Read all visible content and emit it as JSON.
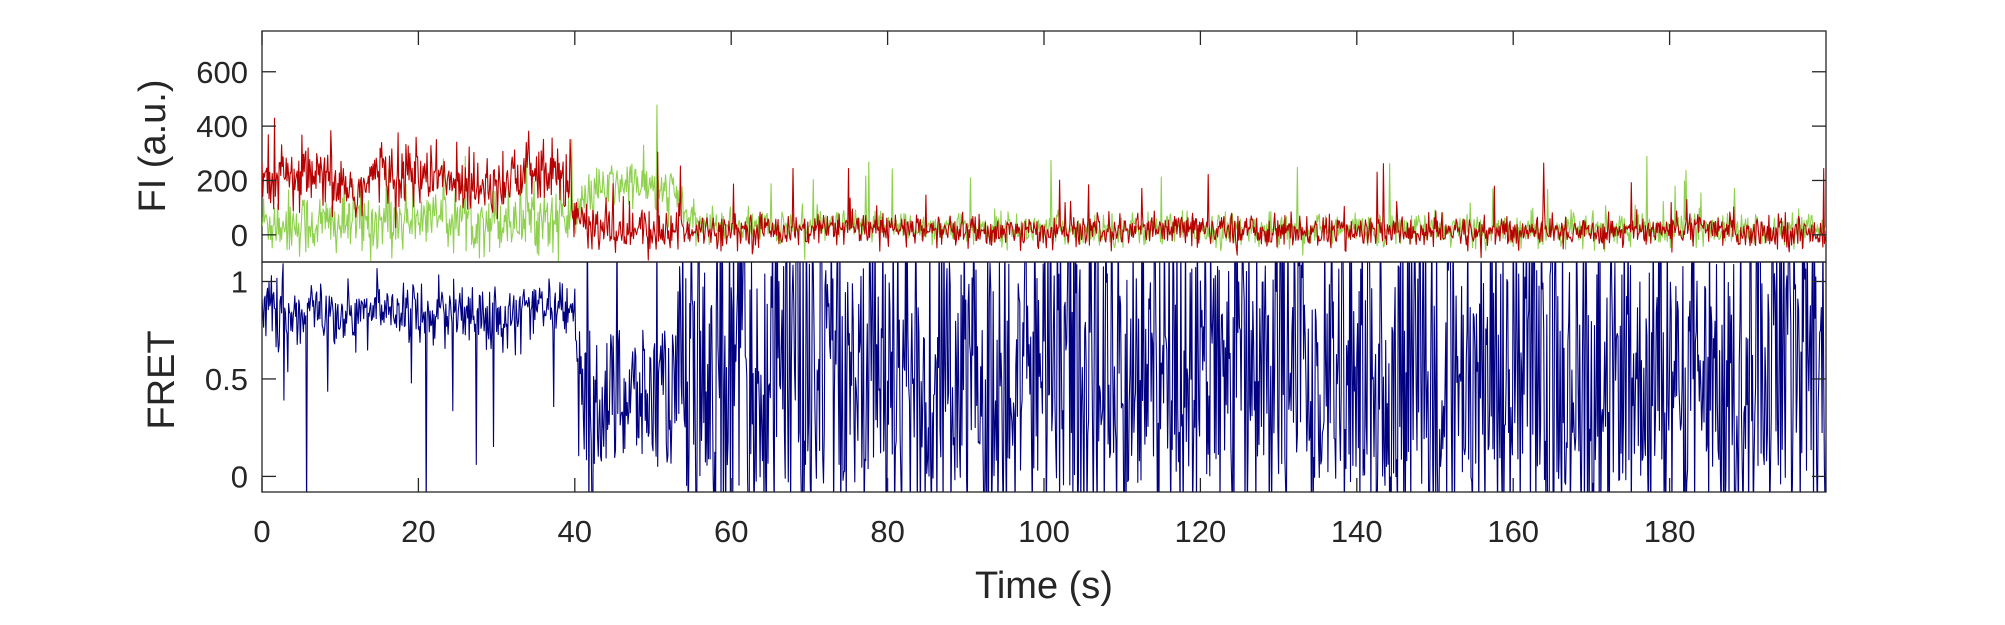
{
  "chart_data": [
    {
      "type": "line",
      "ylabel": "FI (a.u.)",
      "xlim": [
        0,
        200
      ],
      "ylim": [
        -100,
        750
      ],
      "yticks": [
        0,
        200,
        400,
        600
      ],
      "ytick_labels": [
        "0",
        "200",
        "400",
        "600"
      ],
      "grid": false,
      "series": [
        {
          "color": "#8fd14f",
          "style": "thin noisy trace",
          "x": [
            0,
            5,
            10,
            15,
            20,
            25,
            30,
            35,
            40,
            42,
            45,
            48,
            50,
            53,
            55,
            60,
            80,
            100,
            120,
            140,
            160,
            180,
            190,
            200
          ],
          "y": [
            50,
            40,
            40,
            50,
            60,
            60,
            60,
            60,
            60,
            150,
            180,
            190,
            170,
            150,
            40,
            30,
            30,
            20,
            20,
            20,
            20,
            20,
            20,
            10
          ]
        },
        {
          "color": "#b80000",
          "style": "thin noisy trace",
          "x": [
            0,
            5,
            10,
            12,
            15,
            20,
            25,
            30,
            35,
            39,
            40,
            42,
            45,
            50,
            55,
            60,
            80,
            100,
            120,
            140,
            160,
            180,
            200
          ],
          "y": [
            200,
            210,
            190,
            150,
            230,
            220,
            190,
            200,
            230,
            200,
            80,
            20,
            20,
            10,
            20,
            20,
            20,
            10,
            20,
            10,
            10,
            20,
            10
          ]
        }
      ]
    },
    {
      "type": "line",
      "ylabel": "FRET",
      "xlabel": "Time (s)",
      "xlim": [
        0,
        200
      ],
      "ylim": [
        -0.08,
        1.1
      ],
      "xticks": [
        0,
        20,
        40,
        60,
        80,
        100,
        120,
        140,
        160,
        180
      ],
      "xtick_labels": [
        "0",
        "20",
        "40",
        "60",
        "80",
        "100",
        "120",
        "140",
        "160",
        "180"
      ],
      "yticks": [
        0,
        0.5,
        1
      ],
      "ytick_labels": [
        "0",
        "0.5",
        "1"
      ],
      "grid": false,
      "series": [
        {
          "color": "#000080",
          "style": "thin noisy trace",
          "x": [
            0,
            5,
            10,
            15,
            20,
            25,
            30,
            35,
            40,
            41,
            45,
            50,
            53,
            60,
            80,
            100,
            120,
            140,
            160,
            180,
            200
          ],
          "y": [
            0.85,
            0.85,
            0.82,
            0.85,
            0.85,
            0.82,
            0.83,
            0.86,
            0.85,
            0.1,
            0.25,
            0.35,
            0.4,
            0.45,
            0.5,
            0.5,
            0.5,
            0.5,
            0.5,
            0.5,
            0.5
          ]
        }
      ]
    }
  ]
}
